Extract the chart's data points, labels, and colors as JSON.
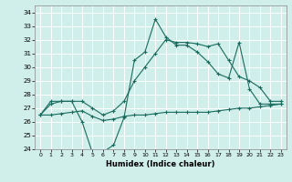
{
  "xlabel": "Humidex (Indice chaleur)",
  "xlim": [
    -0.5,
    23.5
  ],
  "ylim": [
    24,
    34.5
  ],
  "yticks": [
    24,
    25,
    26,
    27,
    28,
    29,
    30,
    31,
    32,
    33,
    34
  ],
  "xticks": [
    0,
    1,
    2,
    3,
    4,
    5,
    6,
    7,
    8,
    9,
    10,
    11,
    12,
    13,
    14,
    15,
    16,
    17,
    18,
    19,
    20,
    21,
    22,
    23
  ],
  "bg_color": "#d0eeea",
  "line_color": "#1a6b5e",
  "grid_color": "#ffffff",
  "y_upper": [
    26.5,
    27.5,
    27.5,
    27.5,
    26.0,
    23.7,
    23.8,
    24.3,
    26.3,
    30.5,
    31.1,
    33.5,
    32.2,
    31.6,
    31.6,
    31.1,
    30.4,
    29.5,
    29.2,
    31.8,
    28.4,
    27.3,
    27.3,
    27.3
  ],
  "y_mid": [
    26.5,
    27.3,
    27.5,
    27.5,
    27.5,
    27.0,
    26.5,
    26.8,
    27.5,
    29.0,
    30.0,
    31.0,
    32.0,
    31.8,
    31.8,
    31.7,
    31.5,
    31.7,
    30.5,
    29.3,
    29.0,
    28.5,
    27.5,
    27.5
  ],
  "y_lower": [
    26.5,
    26.5,
    26.6,
    26.7,
    26.8,
    26.4,
    26.1,
    26.2,
    26.4,
    26.5,
    26.5,
    26.6,
    26.7,
    26.7,
    26.7,
    26.7,
    26.7,
    26.8,
    26.9,
    27.0,
    27.0,
    27.1,
    27.2,
    27.3
  ]
}
